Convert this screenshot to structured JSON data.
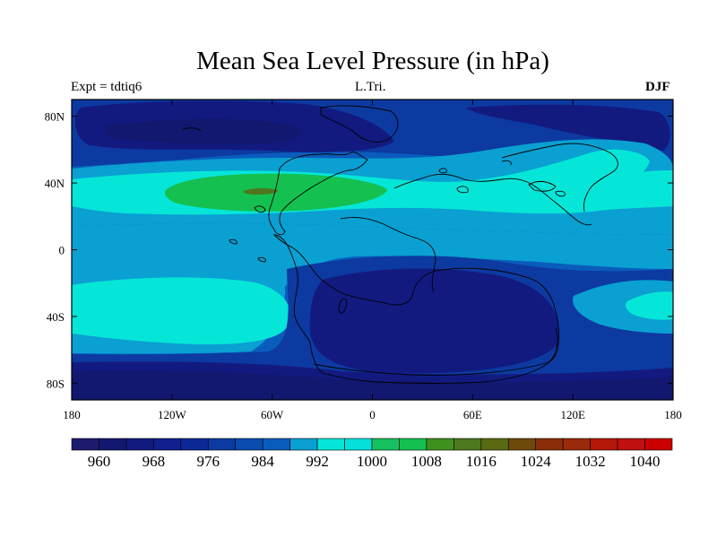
{
  "title": "Mean Sea Level Pressure (in hPa)",
  "left_label": "Expt = tdtiq6",
  "center_label": "L.Tri.",
  "right_label": "DJF",
  "x_ticks": [
    {
      "lon": -180,
      "label": "180"
    },
    {
      "lon": -120,
      "label": "120W"
    },
    {
      "lon": -60,
      "label": "60W"
    },
    {
      "lon": 0,
      "label": "0"
    },
    {
      "lon": 60,
      "label": "60E"
    },
    {
      "lon": 120,
      "label": "120E"
    },
    {
      "lon": 180,
      "label": "180"
    }
  ],
  "y_ticks": [
    {
      "lat": 80,
      "label": "80N"
    },
    {
      "lat": 40,
      "label": "40N"
    },
    {
      "lat": 0,
      "label": "0"
    },
    {
      "lat": -40,
      "label": "40S"
    },
    {
      "lat": -80,
      "label": "80S"
    }
  ],
  "colorbar": {
    "colors": [
      "#1e1a6e",
      "#121870",
      "#121a80",
      "#10208f",
      "#0c2896",
      "#0c3aa0",
      "#0a4cb0",
      "#0a5cbc",
      "#0aa0d2",
      "#06e6d8",
      "#06e0dc",
      "#14c060",
      "#14c050",
      "#40901e",
      "#4d781e",
      "#5a6a12",
      "#6e4a0a",
      "#8a2e0a",
      "#9a2a0a",
      "#b41808",
      "#c01010",
      "#cc0000"
    ],
    "labels": [
      "960",
      "968",
      "976",
      "984",
      "992",
      "1000",
      "1008",
      "1016",
      "1024",
      "1032",
      "1040"
    ]
  },
  "field": {
    "background_level_color": "#0a5cbc",
    "levels": {
      "deep": "#121870",
      "low": "#121a80",
      "mid_low": "#0c3aa0",
      "mid": "#0a5cbc",
      "mid_high": "#0aa0d2",
      "high": "#06e6d8",
      "peak": "#14c050",
      "max": "#4d781e"
    }
  }
}
